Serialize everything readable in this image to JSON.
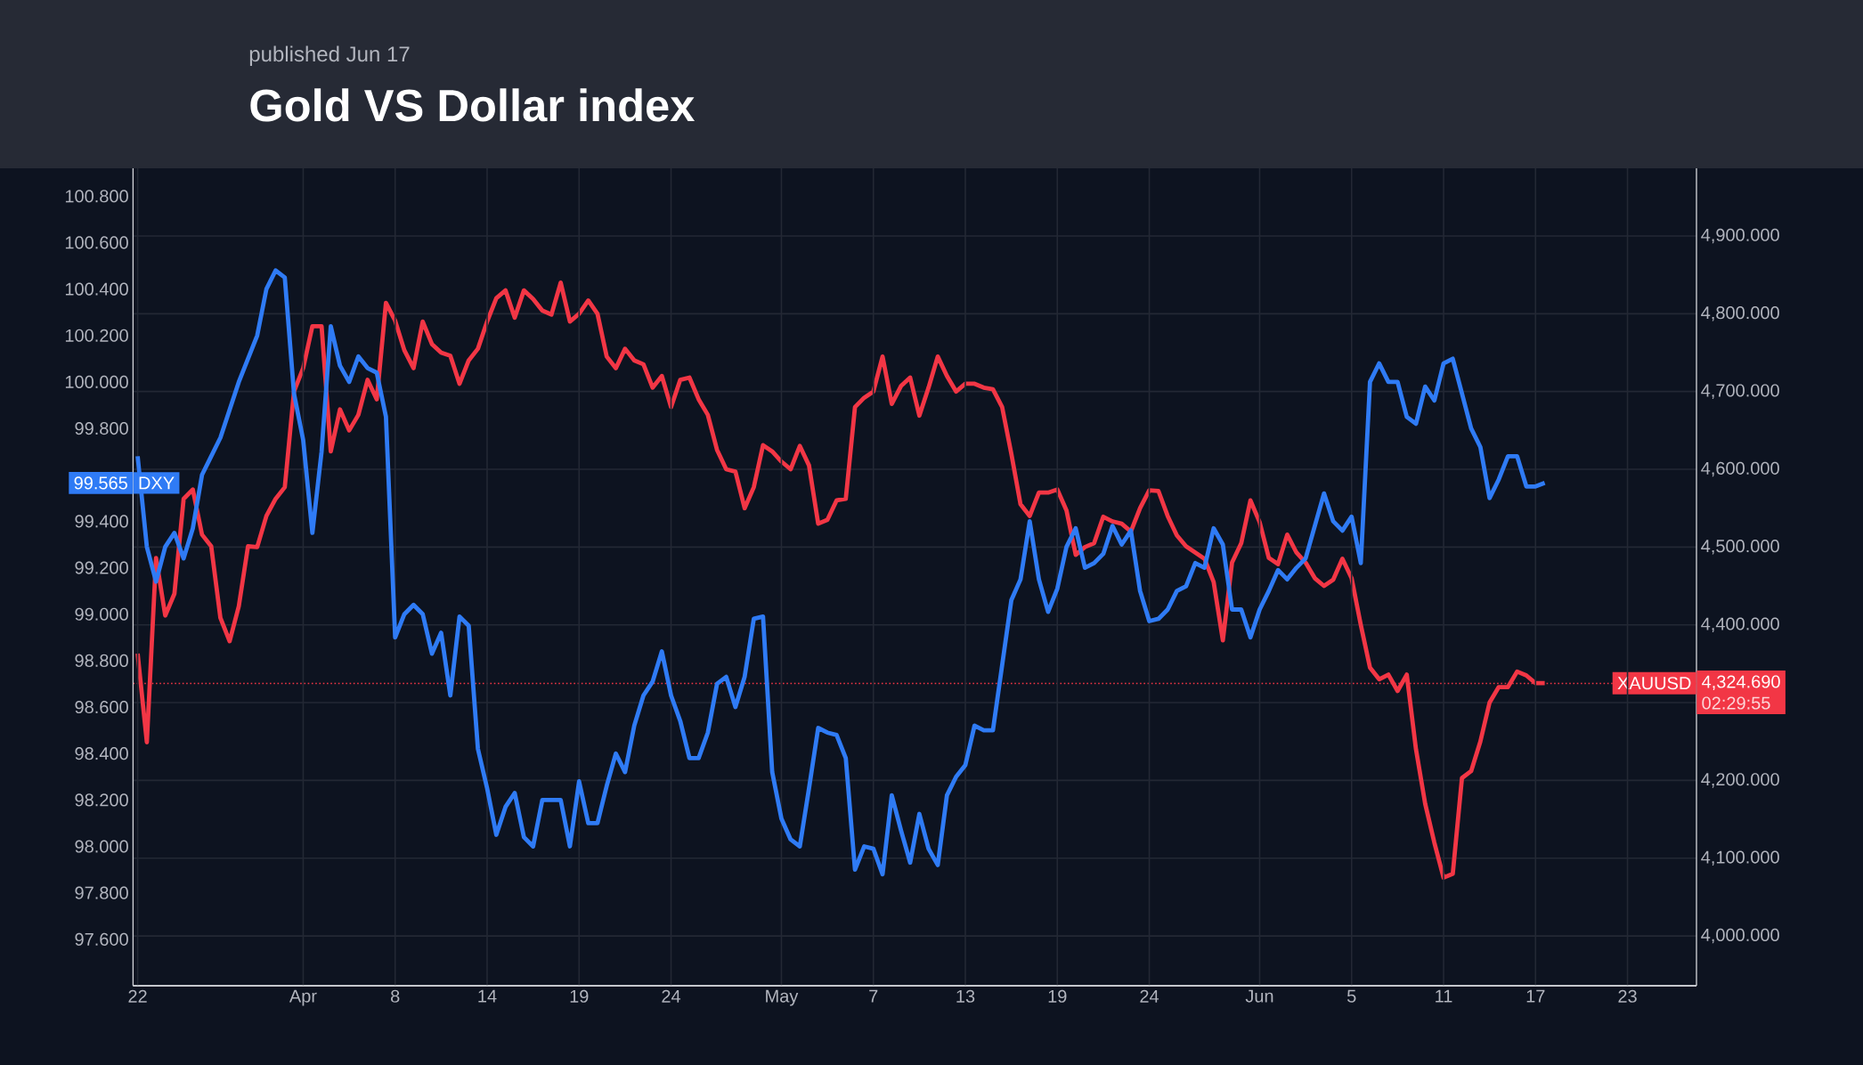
{
  "chart_data": {
    "type": "line",
    "title": "Gold VS Dollar index",
    "subtitle": "published Jun 17",
    "categories": [
      "22",
      null,
      null,
      null,
      null,
      null,
      null,
      null,
      null,
      null,
      null,
      null,
      null,
      null,
      null,
      null,
      null,
      null,
      "Apr",
      null,
      null,
      null,
      null,
      null,
      null,
      null,
      null,
      null,
      "8",
      null,
      null,
      null,
      null,
      null,
      null,
      null,
      null,
      null,
      "14",
      null,
      null,
      null,
      null,
      null,
      null,
      null,
      null,
      null,
      "19",
      null,
      null,
      null,
      null,
      null,
      null,
      null,
      null,
      null,
      "24",
      null,
      null,
      null,
      null,
      null,
      null,
      null,
      null,
      null,
      null,
      null,
      "May",
      null,
      null,
      null,
      null,
      null,
      null,
      null,
      null,
      null,
      "7",
      null,
      null,
      null,
      null,
      null,
      null,
      null,
      null,
      null,
      "13",
      null,
      null,
      null,
      null,
      null,
      null,
      null,
      null,
      null,
      "19",
      null,
      null,
      null,
      null,
      null,
      null,
      null,
      null,
      null,
      "24",
      null,
      null,
      null,
      null,
      null,
      null,
      null,
      null,
      null,
      null,
      null,
      "Jun",
      null,
      null,
      null,
      null,
      null,
      null,
      null,
      null,
      null,
      "5",
      null,
      null,
      null,
      null,
      null,
      null,
      null,
      null,
      null,
      "11",
      null,
      null,
      null,
      null,
      null,
      null,
      null,
      null,
      null,
      "17",
      null,
      null,
      null,
      null,
      null,
      null,
      null,
      null,
      null,
      "23",
      null,
      null,
      null,
      null,
      null,
      null,
      null
    ],
    "series": [
      {
        "name": "DXY",
        "color": "#2f7bf5",
        "values": [
          99.68,
          99.29,
          99.14,
          99.29,
          99.35,
          99.24,
          99.37,
          99.6,
          99.68,
          99.76,
          99.88,
          100.0,
          100.1,
          100.2,
          100.4,
          100.48,
          100.45,
          99.95,
          99.75,
          99.35,
          99.7,
          100.24,
          100.07,
          100.0,
          100.11,
          100.06,
          100.04,
          99.85,
          98.9,
          99.0,
          99.04,
          99.0,
          98.83,
          98.92,
          98.65,
          98.99,
          98.95,
          98.42,
          98.25,
          98.05,
          98.17,
          98.23,
          98.04,
          98.0,
          98.2,
          98.2,
          98.2,
          98.0,
          98.28,
          98.1,
          98.1,
          98.26,
          98.4,
          98.32,
          98.52,
          98.65,
          98.71,
          98.84,
          98.65,
          98.54,
          98.38,
          98.38,
          98.49,
          98.7,
          98.73,
          98.6,
          98.73,
          98.98,
          98.99,
          98.32,
          98.12,
          98.03,
          98.0,
          98.25,
          98.51,
          98.49,
          98.48,
          98.38,
          97.9,
          98.0,
          97.99,
          97.88,
          98.22,
          98.07,
          97.93,
          98.14,
          97.99,
          97.92,
          98.22,
          98.3,
          98.35,
          98.52,
          98.5,
          98.5,
          98.78,
          99.06,
          99.15,
          99.4,
          99.15,
          99.01,
          99.11,
          99.29,
          99.37,
          99.2,
          99.22,
          99.26,
          99.38,
          99.3,
          99.36,
          99.1,
          98.97,
          98.98,
          99.02,
          99.1,
          99.12,
          99.22,
          99.2,
          99.37,
          99.3,
          99.02,
          99.02,
          98.9,
          99.02,
          99.1,
          99.19,
          99.15,
          99.2,
          99.24,
          99.38,
          99.52,
          99.4,
          99.36,
          99.42,
          99.22,
          100.0,
          100.08,
          100.0,
          100.0,
          99.85,
          99.82,
          99.98,
          99.92,
          100.08,
          100.1,
          99.95,
          99.8,
          99.72,
          99.5,
          99.58,
          99.68,
          99.68,
          99.55,
          99.55,
          99.565,
          null,
          null,
          null,
          null,
          null,
          null,
          null,
          null,
          null,
          null,
          null,
          null,
          null,
          null,
          null,
          null
        ]
      },
      {
        "name": "XAUUSD",
        "color": "#f23645",
        "axis": "y2",
        "values": [
          4363,
          4249,
          4486,
          4412,
          4440,
          4562,
          4574,
          4516,
          4501,
          4409,
          4379,
          4424,
          4501,
          4500,
          4540,
          4562,
          4577,
          4700,
          4730,
          4784,
          4784,
          4623,
          4677,
          4650,
          4670,
          4715,
          4690,
          4814,
          4791,
          4753,
          4730,
          4790,
          4761,
          4750,
          4746,
          4710,
          4740,
          4755,
          4790,
          4820,
          4830,
          4795,
          4830,
          4819,
          4804,
          4799,
          4840,
          4790,
          4800,
          4817,
          4800,
          4745,
          4730,
          4755,
          4740,
          4735,
          4705,
          4720,
          4680,
          4715,
          4718,
          4690,
          4670,
          4625,
          4600,
          4597,
          4550,
          4577,
          4631,
          4623,
          4610,
          4600,
          4630,
          4605,
          4530,
          4535,
          4560,
          4562,
          4680,
          4692,
          4700,
          4745,
          4684,
          4707,
          4718,
          4669,
          4705,
          4745,
          4720,
          4700,
          4710,
          4710,
          4705,
          4703,
          4680,
          4620,
          4555,
          4540,
          4570,
          4570,
          4574,
          4547,
          4490,
          4500,
          4505,
          4539,
          4533,
          4530,
          4520,
          4550,
          4573,
          4572,
          4540,
          4515,
          4501,
          4493,
          4485,
          4455,
          4380,
          4480,
          4505,
          4560,
          4532,
          4486,
          4478,
          4516,
          4493,
          4480,
          4460,
          4450,
          4458,
          4485,
          4460,
          4400,
          4345,
          4330,
          4336,
          4315,
          4336,
          4240,
          4170,
          4120,
          4075,
          4080,
          4203,
          4212,
          4250,
          4300,
          4320,
          4320,
          4340,
          4335,
          4325,
          4325,
          null,
          null,
          null,
          null,
          null,
          null,
          null,
          null,
          null,
          null,
          null,
          null,
          null,
          null,
          null,
          null
        ]
      }
    ],
    "ylim": [
      97.4,
      100.92
    ],
    "yticks": [
      {
        "value": 97.6,
        "label": "97.600"
      },
      {
        "value": 97.8,
        "label": "97.800"
      },
      {
        "value": 98.0,
        "label": "98.000"
      },
      {
        "value": 98.2,
        "label": "98.200"
      },
      {
        "value": 98.4,
        "label": "98.400"
      },
      {
        "value": 98.6,
        "label": "98.600"
      },
      {
        "value": 98.8,
        "label": "98.800"
      },
      {
        "value": 99.0,
        "label": "99.000"
      },
      {
        "value": 99.2,
        "label": "99.200"
      },
      {
        "value": 99.4,
        "label": "99.400"
      },
      {
        "value": 99.8,
        "label": "99.800"
      },
      {
        "value": 100.0,
        "label": "100.000"
      },
      {
        "value": 100.2,
        "label": "100.200"
      },
      {
        "value": 100.4,
        "label": "100.400"
      },
      {
        "value": 100.6,
        "label": "100.600"
      },
      {
        "value": 100.8,
        "label": "100.800"
      }
    ],
    "y2lim": [
      3936,
      4987
    ],
    "y2ticks": [
      {
        "value": 4000,
        "label": "4,000.000"
      },
      {
        "value": 4100,
        "label": "4,100.000"
      },
      {
        "value": 4200,
        "label": "4,200.000"
      },
      {
        "value": 4300,
        "label": null
      },
      {
        "value": 4400,
        "label": "4,400.000"
      },
      {
        "value": 4500,
        "label": "4,500.000"
      },
      {
        "value": 4600,
        "label": "4,600.000"
      },
      {
        "value": 4700,
        "label": "4,700.000"
      },
      {
        "value": 4800,
        "label": "4,800.000"
      },
      {
        "value": 4900,
        "label": "4,900.000"
      }
    ],
    "ref_lines": [
      {
        "axis": "y2",
        "value": 4324.69,
        "label": "4,324.690",
        "color": "#f23645",
        "line_style": "dotted"
      }
    ],
    "annotations": [
      "99.565",
      "02:29:55"
    ],
    "grid": true
  }
}
